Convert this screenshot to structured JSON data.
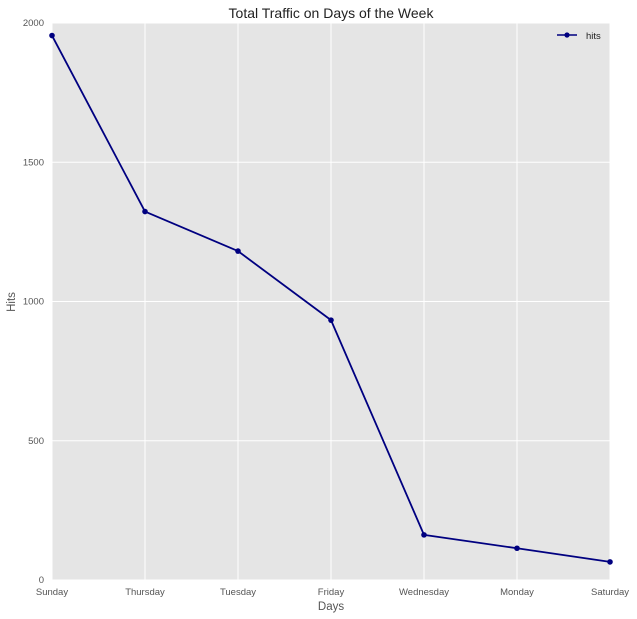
{
  "chart_data": {
    "type": "line",
    "title": "Total Traffic on Days of the Week",
    "xlabel": "Days",
    "ylabel": "Hits",
    "categories": [
      "Sunday",
      "Thursday",
      "Tuesday",
      "Friday",
      "Wednesday",
      "Monday",
      "Saturday"
    ],
    "series": [
      {
        "name": "hits",
        "values": [
          1955,
          1323,
          1181,
          933,
          162,
          114,
          65
        ],
        "color": "#000080"
      }
    ],
    "ylim": [
      0,
      2000
    ],
    "yticks": [
      "0",
      "500",
      "1000",
      "1500",
      "2000"
    ],
    "grid": true,
    "legend_position": "top-right",
    "background_color": "#e5e5e5",
    "grid_color": "#ffffff"
  }
}
